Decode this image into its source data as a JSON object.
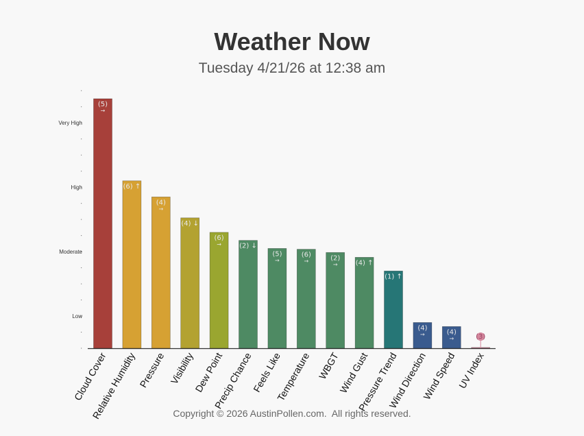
{
  "title": "Weather Now",
  "subtitle": "Tuesday 4/21/26 at 12:38 am",
  "footer": "Copyright © 2026 AustinPollen.com.  All rights reserved.",
  "chart_data": {
    "type": "bar",
    "ylim": [
      0,
      15.5
    ],
    "yticks": [
      {
        "value": 2,
        "label": "Low"
      },
      {
        "value": 6,
        "label": "Moderate"
      },
      {
        "value": 10,
        "label": "High"
      },
      {
        "value": 14,
        "label": "Very High"
      }
    ],
    "minor_tick_step": 1,
    "bars": [
      {
        "category": "Cloud Cover",
        "value": 15.5,
        "annotation": "(5)",
        "trend": "→",
        "color": "#a7403a"
      },
      {
        "category": "Relative Humidity",
        "value": 10.4,
        "annotation": "(6)",
        "trend": "↑",
        "color": "#d6a133"
      },
      {
        "category": "Pressure",
        "value": 9.4,
        "annotation": "(4)",
        "trend": "→",
        "color": "#d6a133"
      },
      {
        "category": "Visibility",
        "value": 8.1,
        "annotation": "(4)",
        "trend": "↓",
        "color": "#b3a231"
      },
      {
        "category": "Dew Point",
        "value": 7.2,
        "annotation": "(6)",
        "trend": "→",
        "color": "#9aa630"
      },
      {
        "category": "Precip Chance",
        "value": 6.7,
        "annotation": "(2)",
        "trend": "↓",
        "color": "#4e8a63"
      },
      {
        "category": "Feels Like",
        "value": 6.2,
        "annotation": "(5)",
        "trend": "→",
        "color": "#4e8a63"
      },
      {
        "category": "Temperature",
        "value": 6.15,
        "annotation": "(6)",
        "trend": "→",
        "color": "#4e8a63"
      },
      {
        "category": "WBGT",
        "value": 5.95,
        "annotation": "(2)",
        "trend": "→",
        "color": "#4e8a63"
      },
      {
        "category": "Wind Gust",
        "value": 5.65,
        "annotation": "(4)",
        "trend": "↑",
        "color": "#4e8a63"
      },
      {
        "category": "Pressure Trend",
        "value": 4.8,
        "annotation": "(1)",
        "trend": "↑",
        "color": "#267676"
      },
      {
        "category": "Wind Direction",
        "value": 1.6,
        "annotation": "(4)",
        "trend": "→",
        "color": "#3a5b8e"
      },
      {
        "category": "Wind Speed",
        "value": 1.35,
        "annotation": "(4)",
        "trend": "→",
        "color": "#3a5b8e"
      },
      {
        "category": "UV Index",
        "value": 0.05,
        "annotation": "(3)",
        "trend": "",
        "color": "#d4879c"
      }
    ]
  }
}
